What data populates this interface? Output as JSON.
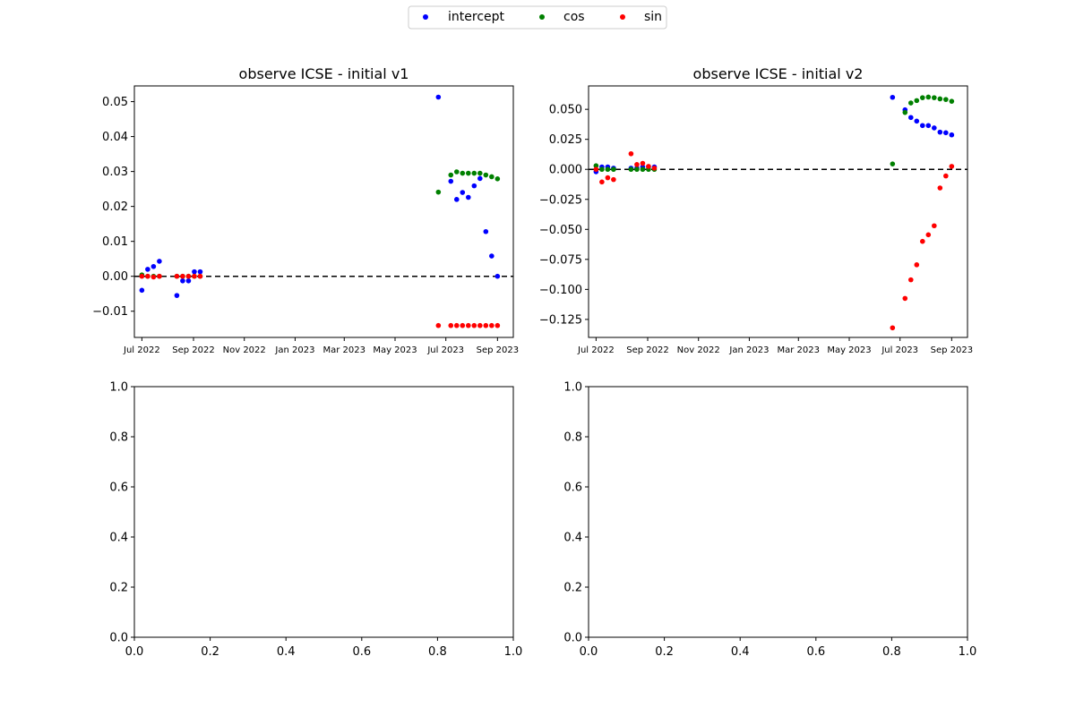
{
  "legend": {
    "items": [
      {
        "label": "intercept",
        "color": "#0000ff"
      },
      {
        "label": "cos",
        "color": "#008000"
      },
      {
        "label": "sin",
        "color": "#ff0000"
      }
    ]
  },
  "colors": {
    "intercept": "#0000ff",
    "cos": "#008000",
    "sin": "#ff0000"
  },
  "chart_data": [
    {
      "type": "scatter",
      "title": "observe ICSE - initial v1",
      "xlabel": "",
      "ylabel": "",
      "xlim": [
        "2022-06-22",
        "2023-09-20"
      ],
      "ylim": [
        -0.0175,
        0.0545
      ],
      "yticks": [
        -0.01,
        0.0,
        0.01,
        0.02,
        0.03,
        0.04,
        0.05
      ],
      "ytick_labels": [
        "−0.01",
        "0.00",
        "0.01",
        "0.02",
        "0.03",
        "0.04",
        "0.05"
      ],
      "xticks": [
        "2022-07-01",
        "2022-09-01",
        "2022-11-01",
        "2023-01-01",
        "2023-03-01",
        "2023-05-01",
        "2023-07-01",
        "2023-09-01"
      ],
      "xtick_labels": [
        "Jul 2022",
        "Sep 2022",
        "Nov 2022",
        "Jan 2023",
        "Mar 2023",
        "May 2023",
        "Jul 2023",
        "Sep 2023"
      ],
      "zero_line": true,
      "grid": false,
      "series": [
        {
          "name": "intercept",
          "color": "#0000ff",
          "points": [
            [
              "2022-07-01",
              -0.004
            ],
            [
              "2022-07-08",
              0.002
            ],
            [
              "2022-07-15",
              0.0028
            ],
            [
              "2022-07-22",
              0.0043
            ],
            [
              "2022-08-12",
              -0.0055
            ],
            [
              "2022-08-19",
              -0.0013
            ],
            [
              "2022-08-26",
              -0.0013
            ],
            [
              "2022-09-02",
              0.0013
            ],
            [
              "2022-09-09",
              0.0013
            ],
            [
              "2023-06-22",
              0.0513
            ],
            [
              "2023-07-07",
              0.0272
            ],
            [
              "2023-07-14",
              0.022
            ],
            [
              "2023-07-21",
              0.024
            ],
            [
              "2023-07-28",
              0.0226
            ],
            [
              "2023-08-04",
              0.0259
            ],
            [
              "2023-08-11",
              0.028
            ],
            [
              "2023-08-18",
              0.0128
            ],
            [
              "2023-08-25",
              0.0058
            ],
            [
              "2023-09-01",
              0.0
            ]
          ]
        },
        {
          "name": "cos",
          "color": "#008000",
          "points": [
            [
              "2022-07-01",
              0.0004
            ],
            [
              "2022-07-08",
              0.0
            ],
            [
              "2022-07-15",
              0.0
            ],
            [
              "2022-07-22",
              0.0
            ],
            [
              "2022-08-12",
              0.0
            ],
            [
              "2022-08-19",
              0.0
            ],
            [
              "2022-08-26",
              0.0
            ],
            [
              "2022-09-02",
              0.0
            ],
            [
              "2022-09-09",
              0.0
            ],
            [
              "2023-06-22",
              0.0241
            ],
            [
              "2023-07-07",
              0.029
            ],
            [
              "2023-07-14",
              0.0299
            ],
            [
              "2023-07-21",
              0.0295
            ],
            [
              "2023-07-28",
              0.0295
            ],
            [
              "2023-08-04",
              0.0295
            ],
            [
              "2023-08-11",
              0.0295
            ],
            [
              "2023-08-18",
              0.029
            ],
            [
              "2023-08-25",
              0.0285
            ],
            [
              "2023-09-01",
              0.0279
            ]
          ]
        },
        {
          "name": "sin",
          "color": "#ff0000",
          "points": [
            [
              "2022-07-01",
              0.0
            ],
            [
              "2022-07-08",
              0.0
            ],
            [
              "2022-07-15",
              -0.0002
            ],
            [
              "2022-07-22",
              0.0
            ],
            [
              "2022-08-12",
              0.0
            ],
            [
              "2022-08-19",
              0.0
            ],
            [
              "2022-08-26",
              0.0
            ],
            [
              "2022-09-02",
              0.0
            ],
            [
              "2022-09-09",
              0.0
            ],
            [
              "2023-06-22",
              -0.0141
            ],
            [
              "2023-07-07",
              -0.0141
            ],
            [
              "2023-07-14",
              -0.0141
            ],
            [
              "2023-07-21",
              -0.0141
            ],
            [
              "2023-07-28",
              -0.0141
            ],
            [
              "2023-08-04",
              -0.0141
            ],
            [
              "2023-08-11",
              -0.0141
            ],
            [
              "2023-08-18",
              -0.0141
            ],
            [
              "2023-08-25",
              -0.0141
            ],
            [
              "2023-09-01",
              -0.0141
            ]
          ]
        }
      ]
    },
    {
      "type": "scatter",
      "title": "observe ICSE - initial v2",
      "xlabel": "",
      "ylabel": "",
      "xlim": [
        "2022-06-22",
        "2023-09-20"
      ],
      "ylim": [
        -0.14,
        0.0695
      ],
      "yticks": [
        -0.125,
        -0.1,
        -0.075,
        -0.05,
        -0.025,
        0.0,
        0.025,
        0.05
      ],
      "ytick_labels": [
        "−0.125",
        "−0.100",
        "−0.075",
        "−0.050",
        "−0.025",
        "0.000",
        "0.025",
        "0.050"
      ],
      "xticks": [
        "2022-07-01",
        "2022-09-01",
        "2022-11-01",
        "2023-01-01",
        "2023-03-01",
        "2023-05-01",
        "2023-07-01",
        "2023-09-01"
      ],
      "xtick_labels": [
        "Jul 2022",
        "Sep 2022",
        "Nov 2022",
        "Jan 2023",
        "Mar 2023",
        "May 2023",
        "Jul 2023",
        "Sep 2023"
      ],
      "zero_line": true,
      "grid": false,
      "series": [
        {
          "name": "intercept",
          "color": "#0000ff",
          "points": [
            [
              "2022-07-01",
              -0.002
            ],
            [
              "2022-07-08",
              0.002
            ],
            [
              "2022-07-15",
              0.002
            ],
            [
              "2022-07-22",
              0.001
            ],
            [
              "2022-08-12",
              0.001
            ],
            [
              "2022-08-19",
              0.001
            ],
            [
              "2022-08-26",
              0.002
            ],
            [
              "2022-09-02",
              0.002
            ],
            [
              "2022-09-09",
              0.002
            ],
            [
              "2023-06-22",
              0.06
            ],
            [
              "2023-07-07",
              0.0496
            ],
            [
              "2023-07-14",
              0.0432
            ],
            [
              "2023-07-21",
              0.0402
            ],
            [
              "2023-07-28",
              0.0365
            ],
            [
              "2023-08-04",
              0.0365
            ],
            [
              "2023-08-11",
              0.0345
            ],
            [
              "2023-08-18",
              0.031
            ],
            [
              "2023-08-25",
              0.0305
            ],
            [
              "2023-09-01",
              0.0287
            ]
          ]
        },
        {
          "name": "cos",
          "color": "#008000",
          "points": [
            [
              "2022-07-01",
              0.003
            ],
            [
              "2022-07-08",
              0.0
            ],
            [
              "2022-07-15",
              0.0
            ],
            [
              "2022-07-22",
              0.0
            ],
            [
              "2022-08-12",
              0.0
            ],
            [
              "2022-08-19",
              0.0
            ],
            [
              "2022-08-26",
              0.0
            ],
            [
              "2022-09-02",
              0.0
            ],
            [
              "2022-09-09",
              0.0
            ],
            [
              "2023-06-22",
              0.0045
            ],
            [
              "2023-07-07",
              0.0474
            ],
            [
              "2023-07-14",
              0.0553
            ],
            [
              "2023-07-21",
              0.0573
            ],
            [
              "2023-07-28",
              0.0597
            ],
            [
              "2023-08-04",
              0.0602
            ],
            [
              "2023-08-11",
              0.0597
            ],
            [
              "2023-08-18",
              0.0587
            ],
            [
              "2023-08-25",
              0.0582
            ],
            [
              "2023-09-01",
              0.0567
            ]
          ]
        },
        {
          "name": "sin",
          "color": "#ff0000",
          "points": [
            [
              "2022-07-01",
              0.0
            ],
            [
              "2022-07-08",
              -0.0105
            ],
            [
              "2022-07-15",
              -0.007
            ],
            [
              "2022-07-22",
              -0.0085
            ],
            [
              "2022-08-12",
              0.013
            ],
            [
              "2022-08-19",
              0.004
            ],
            [
              "2022-08-26",
              0.005
            ],
            [
              "2022-09-02",
              0.0025
            ],
            [
              "2022-09-09",
              0.001
            ],
            [
              "2023-06-22",
              -0.132
            ],
            [
              "2023-07-07",
              -0.1075
            ],
            [
              "2023-07-14",
              -0.092
            ],
            [
              "2023-07-21",
              -0.0795
            ],
            [
              "2023-07-28",
              -0.06
            ],
            [
              "2023-08-04",
              -0.0545
            ],
            [
              "2023-08-11",
              -0.047
            ],
            [
              "2023-08-18",
              -0.0155
            ],
            [
              "2023-08-25",
              -0.0055
            ],
            [
              "2023-09-01",
              0.0025
            ]
          ]
        }
      ]
    },
    {
      "type": "scatter",
      "title": "",
      "xlabel": "",
      "ylabel": "",
      "xlim": [
        0,
        1
      ],
      "ylim": [
        0,
        1
      ],
      "xticks": [
        0.0,
        0.2,
        0.4,
        0.6,
        0.8,
        1.0
      ],
      "xtick_labels": [
        "0.0",
        "0.2",
        "0.4",
        "0.6",
        "0.8",
        "1.0"
      ],
      "yticks": [
        0.0,
        0.2,
        0.4,
        0.6,
        0.8,
        1.0
      ],
      "ytick_labels": [
        "0.0",
        "0.2",
        "0.4",
        "0.6",
        "0.8",
        "1.0"
      ],
      "series": []
    },
    {
      "type": "scatter",
      "title": "",
      "xlabel": "",
      "ylabel": "",
      "xlim": [
        0,
        1
      ],
      "ylim": [
        0,
        1
      ],
      "xticks": [
        0.0,
        0.2,
        0.4,
        0.6,
        0.8,
        1.0
      ],
      "xtick_labels": [
        "0.0",
        "0.2",
        "0.4",
        "0.6",
        "0.8",
        "1.0"
      ],
      "yticks": [
        0.0,
        0.2,
        0.4,
        0.6,
        0.8,
        1.0
      ],
      "ytick_labels": [
        "0.0",
        "0.2",
        "0.4",
        "0.6",
        "0.8",
        "1.0"
      ],
      "series": []
    }
  ]
}
